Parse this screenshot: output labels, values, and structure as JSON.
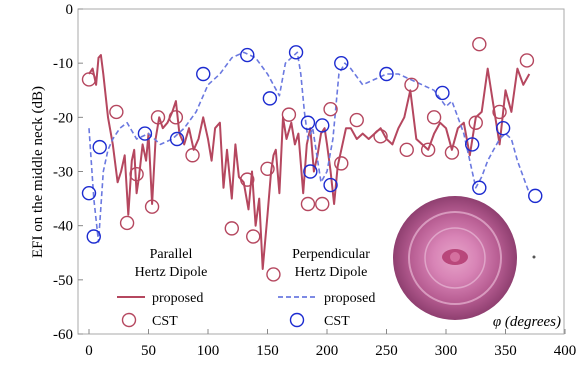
{
  "chart_data": {
    "type": "line",
    "xlabel": "φ (degrees)",
    "ylabel": "EFI on the middle neck (dB)",
    "xlim": [
      0,
      400
    ],
    "ylim": [
      -60,
      0
    ],
    "xticks": [
      "0",
      "50",
      "100",
      "150",
      "200",
      "250",
      "300",
      "350",
      "400"
    ],
    "yticks": [
      "0",
      "-10",
      "-20",
      "-30",
      "-40",
      "-50",
      "-60"
    ],
    "grid": false,
    "legend": [
      {
        "group": "Parallel\nHertz Dipole",
        "line_label": "proposed",
        "marker_label": "CST"
      },
      {
        "group": "Perpendicular\nHertz Dipole",
        "line_label": "proposed",
        "marker_label": "CST"
      }
    ],
    "legend_groups": {
      "parallel_line1": "Parallel",
      "parallel_line2": "Hertz Dipole",
      "perpendicular_line1": "Perpendicular",
      "perpendicular_line2": "Hertz Dipole",
      "proposed": "proposed",
      "cst": "CST"
    },
    "series": [
      {
        "name": "proposed",
        "group": "Parallel Hertz Dipole",
        "style": "solid",
        "color": "#b5475f",
        "x": [
          0,
          3,
          6,
          8,
          10,
          12,
          16,
          20,
          24,
          27,
          30,
          33,
          36,
          38,
          40,
          42,
          45,
          48,
          50,
          53,
          56,
          59,
          62,
          66,
          70,
          73,
          76,
          80,
          84,
          88,
          92,
          96,
          100,
          103,
          106,
          110,
          113,
          116,
          120,
          123,
          126,
          130,
          134,
          137,
          140,
          143,
          146,
          150,
          153,
          155,
          157,
          160,
          163,
          166,
          170,
          173,
          176,
          180,
          183,
          186,
          189,
          192,
          195,
          198,
          200,
          203,
          206,
          209,
          212,
          216,
          220,
          225,
          230,
          235,
          240,
          245,
          250,
          255,
          260,
          265,
          270,
          275,
          280,
          285,
          290,
          295,
          300,
          305,
          310,
          315,
          320,
          325,
          330,
          335,
          340,
          345,
          350,
          355,
          360,
          365,
          370
        ],
        "y": [
          -12,
          -11,
          -14,
          -9,
          -8.5,
          -12,
          -20,
          -25,
          -32,
          -30,
          -27,
          -38,
          -28,
          -26,
          -34,
          -31,
          -25,
          -28,
          -23,
          -36,
          -24,
          -20,
          -22,
          -21,
          -19,
          -17,
          -23,
          -25,
          -22,
          -26,
          -24,
          -20,
          -24,
          -28,
          -22,
          -21,
          -33,
          -26,
          -35,
          -25,
          -31,
          -32,
          -37,
          -30,
          -40,
          -35,
          -48,
          -38,
          -30,
          -27,
          -26,
          -34,
          -20,
          -24,
          -21,
          -25,
          -23,
          -34,
          -25,
          -22,
          -30,
          -27,
          -23,
          -22,
          -25,
          -30,
          -36,
          -29,
          -26,
          -22,
          -22,
          -24,
          -23,
          -24,
          -23,
          -22,
          -24,
          -25,
          -22,
          -20,
          -15,
          -24,
          -25,
          -26,
          -23,
          -21,
          -22,
          -26,
          -22,
          -21,
          -27,
          -20,
          -19,
          -11,
          -18,
          -25,
          -15,
          -19,
          -11,
          -14,
          -12
        ]
      },
      {
        "name": "CST",
        "group": "Parallel Hertz Dipole",
        "style": "marker",
        "color": "#b5475f",
        "x": [
          0,
          23,
          32,
          40,
          53,
          58,
          73,
          87,
          120,
          133,
          138,
          150,
          155,
          168,
          184,
          196,
          203,
          212,
          225,
          245,
          267,
          271,
          285,
          290,
          305,
          325,
          328,
          345,
          368
        ],
        "y": [
          -13,
          -19,
          -39.5,
          -30.5,
          -36.5,
          -20,
          -20,
          -27,
          -40.5,
          -31.5,
          -42,
          -29.5,
          -49,
          -19.5,
          -36,
          -36,
          -18.5,
          -28.5,
          -20.5,
          -23.5,
          -26,
          -14,
          -26,
          -20,
          -26.5,
          -21,
          -6.5,
          -19,
          -9.5
        ]
      },
      {
        "name": "proposed",
        "group": "Perpendicular Hertz Dipole",
        "style": "dashed",
        "color": "#6b79e0",
        "x": [
          0,
          4,
          8,
          12,
          16,
          20,
          26,
          32,
          40,
          50,
          60,
          70,
          80,
          90,
          100,
          110,
          120,
          130,
          140,
          150,
          160,
          165,
          170,
          175,
          178,
          181,
          184,
          188,
          195,
          200,
          205,
          210,
          215,
          220,
          230,
          240,
          250,
          260,
          270,
          280,
          290,
          300,
          305,
          310,
          315,
          320,
          325,
          330,
          335,
          340,
          345,
          350,
          355,
          360,
          365,
          370
        ],
        "y": [
          -22,
          -35,
          -43,
          -30,
          -26,
          -24,
          -22,
          -21,
          -24,
          -23,
          -25,
          -24,
          -22,
          -19,
          -14,
          -12,
          -9,
          -8,
          -9,
          -12,
          -16,
          -10,
          -9,
          -8,
          -12,
          -19,
          -24,
          -22,
          -32,
          -30,
          -24,
          -12,
          -10,
          -11,
          -14,
          -13,
          -12,
          -12,
          -13,
          -14,
          -15,
          -18,
          -17,
          -20,
          -23,
          -28,
          -33,
          -31,
          -28,
          -26,
          -24,
          -23,
          -24,
          -28,
          -31,
          -34
        ]
      },
      {
        "name": "CST",
        "group": "Perpendicular Hertz Dipole",
        "style": "marker",
        "color": "#1c2bd0",
        "x": [
          0,
          4,
          9,
          47,
          74,
          96,
          133,
          152,
          174,
          184,
          186,
          196,
          203,
          212,
          250,
          297,
          322,
          328,
          348,
          375
        ],
        "y": [
          -34,
          -42,
          -25.5,
          -23,
          -24,
          -12,
          -8.5,
          -16.5,
          -8,
          -21,
          -30,
          -21.5,
          -32.5,
          -10,
          -12,
          -15.5,
          -25,
          -33,
          -22,
          -34.5
        ]
      }
    ]
  }
}
